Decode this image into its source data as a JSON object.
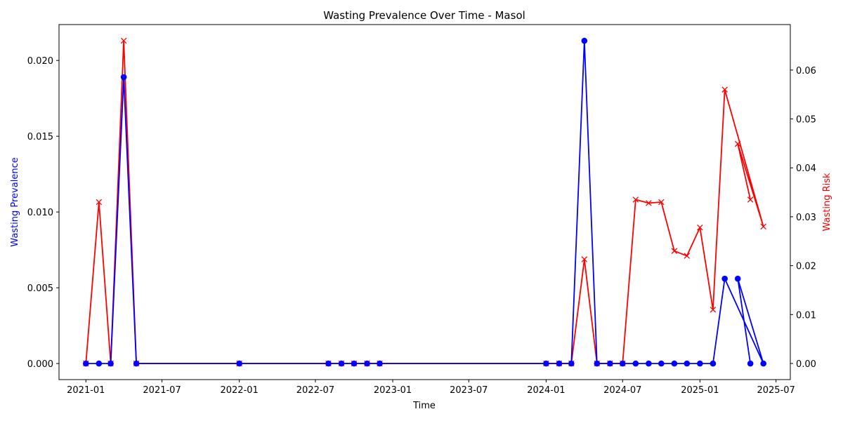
{
  "chart_data": {
    "type": "line",
    "title": "Wasting Prevalence Over Time - Masol",
    "xlabel": "Time",
    "ylabel_left": "Wasting Prevalence",
    "ylabel_right": "Wasting Risk",
    "x_ticks": [
      "2021-01",
      "2021-07",
      "2022-01",
      "2022-07",
      "2023-01",
      "2023-07",
      "2024-01",
      "2024-07",
      "2025-01",
      "2025-07"
    ],
    "y_left_ticks": [
      "0.000",
      "0.005",
      "0.010",
      "0.015",
      "0.020"
    ],
    "y_right_ticks": [
      "0.00",
      "0.01",
      "0.02",
      "0.03",
      "0.04",
      "0.05",
      "0.06"
    ],
    "xlim": [
      "2020-10-29",
      "2025-08-04"
    ],
    "ylim_left": [
      -0.00106,
      0.02237
    ],
    "ylim_right": [
      -0.0033,
      0.0693
    ],
    "grid": false,
    "colors": {
      "prevalence": "#0000ff",
      "risk": "#ff0000"
    },
    "series": [
      {
        "key": "prevalence",
        "axis": "left",
        "marker": "circle",
        "x": [
          "2021-01-01",
          "2021-02-01",
          "2021-03-01",
          "2021-04-01",
          "2021-05-01",
          "2022-01-01",
          "2022-08-01",
          "2022-09-01",
          "2022-10-01",
          "2022-11-01",
          "2022-12-01",
          "2024-01-01",
          "2024-02-01",
          "2024-03-01",
          "2024-04-01",
          "2024-05-01",
          "2024-06-01",
          "2024-07-01",
          "2024-08-01",
          "2024-09-01",
          "2024-10-01",
          "2024-11-01",
          "2024-12-01",
          "2025-01-01",
          "2025-02-01",
          "2025-03-01",
          "2025-06-01",
          "2025-04-01",
          "2025-05-01"
        ],
        "y": [
          0,
          0,
          0,
          0.0189,
          0,
          0,
          0,
          0,
          0,
          0,
          0,
          0,
          0,
          0,
          0.0213,
          0,
          0,
          0,
          0,
          0,
          0,
          0,
          0,
          0,
          0,
          0.0056,
          0,
          0.0056,
          0
        ]
      },
      {
        "key": "risk",
        "axis": "right",
        "marker": "x",
        "x": [
          "2021-01-01",
          "2021-02-01",
          "2021-03-01",
          "2021-04-01",
          "2021-05-01",
          "2022-01-01",
          "2022-08-01",
          "2022-09-01",
          "2022-10-01",
          "2022-11-01",
          "2022-12-01",
          "2024-01-01",
          "2024-02-01",
          "2024-03-01",
          "2024-04-01",
          "2024-05-01",
          "2024-06-01",
          "2024-07-01",
          "2024-08-01",
          "2024-09-01",
          "2024-10-01",
          "2024-11-01",
          "2024-12-01",
          "2025-01-01",
          "2025-02-01",
          "2025-03-01",
          "2025-06-01",
          "2025-04-01",
          "2025-05-01"
        ],
        "y": [
          0,
          0.033,
          0,
          0.066,
          0,
          0,
          0,
          0,
          0,
          0,
          0,
          0,
          0,
          0,
          0.0213,
          0,
          0,
          0,
          0.0335,
          0.0328,
          0.033,
          0.023,
          0.022,
          0.0278,
          0.011,
          0.056,
          0.028,
          0.0449,
          0.0335
        ]
      }
    ]
  }
}
